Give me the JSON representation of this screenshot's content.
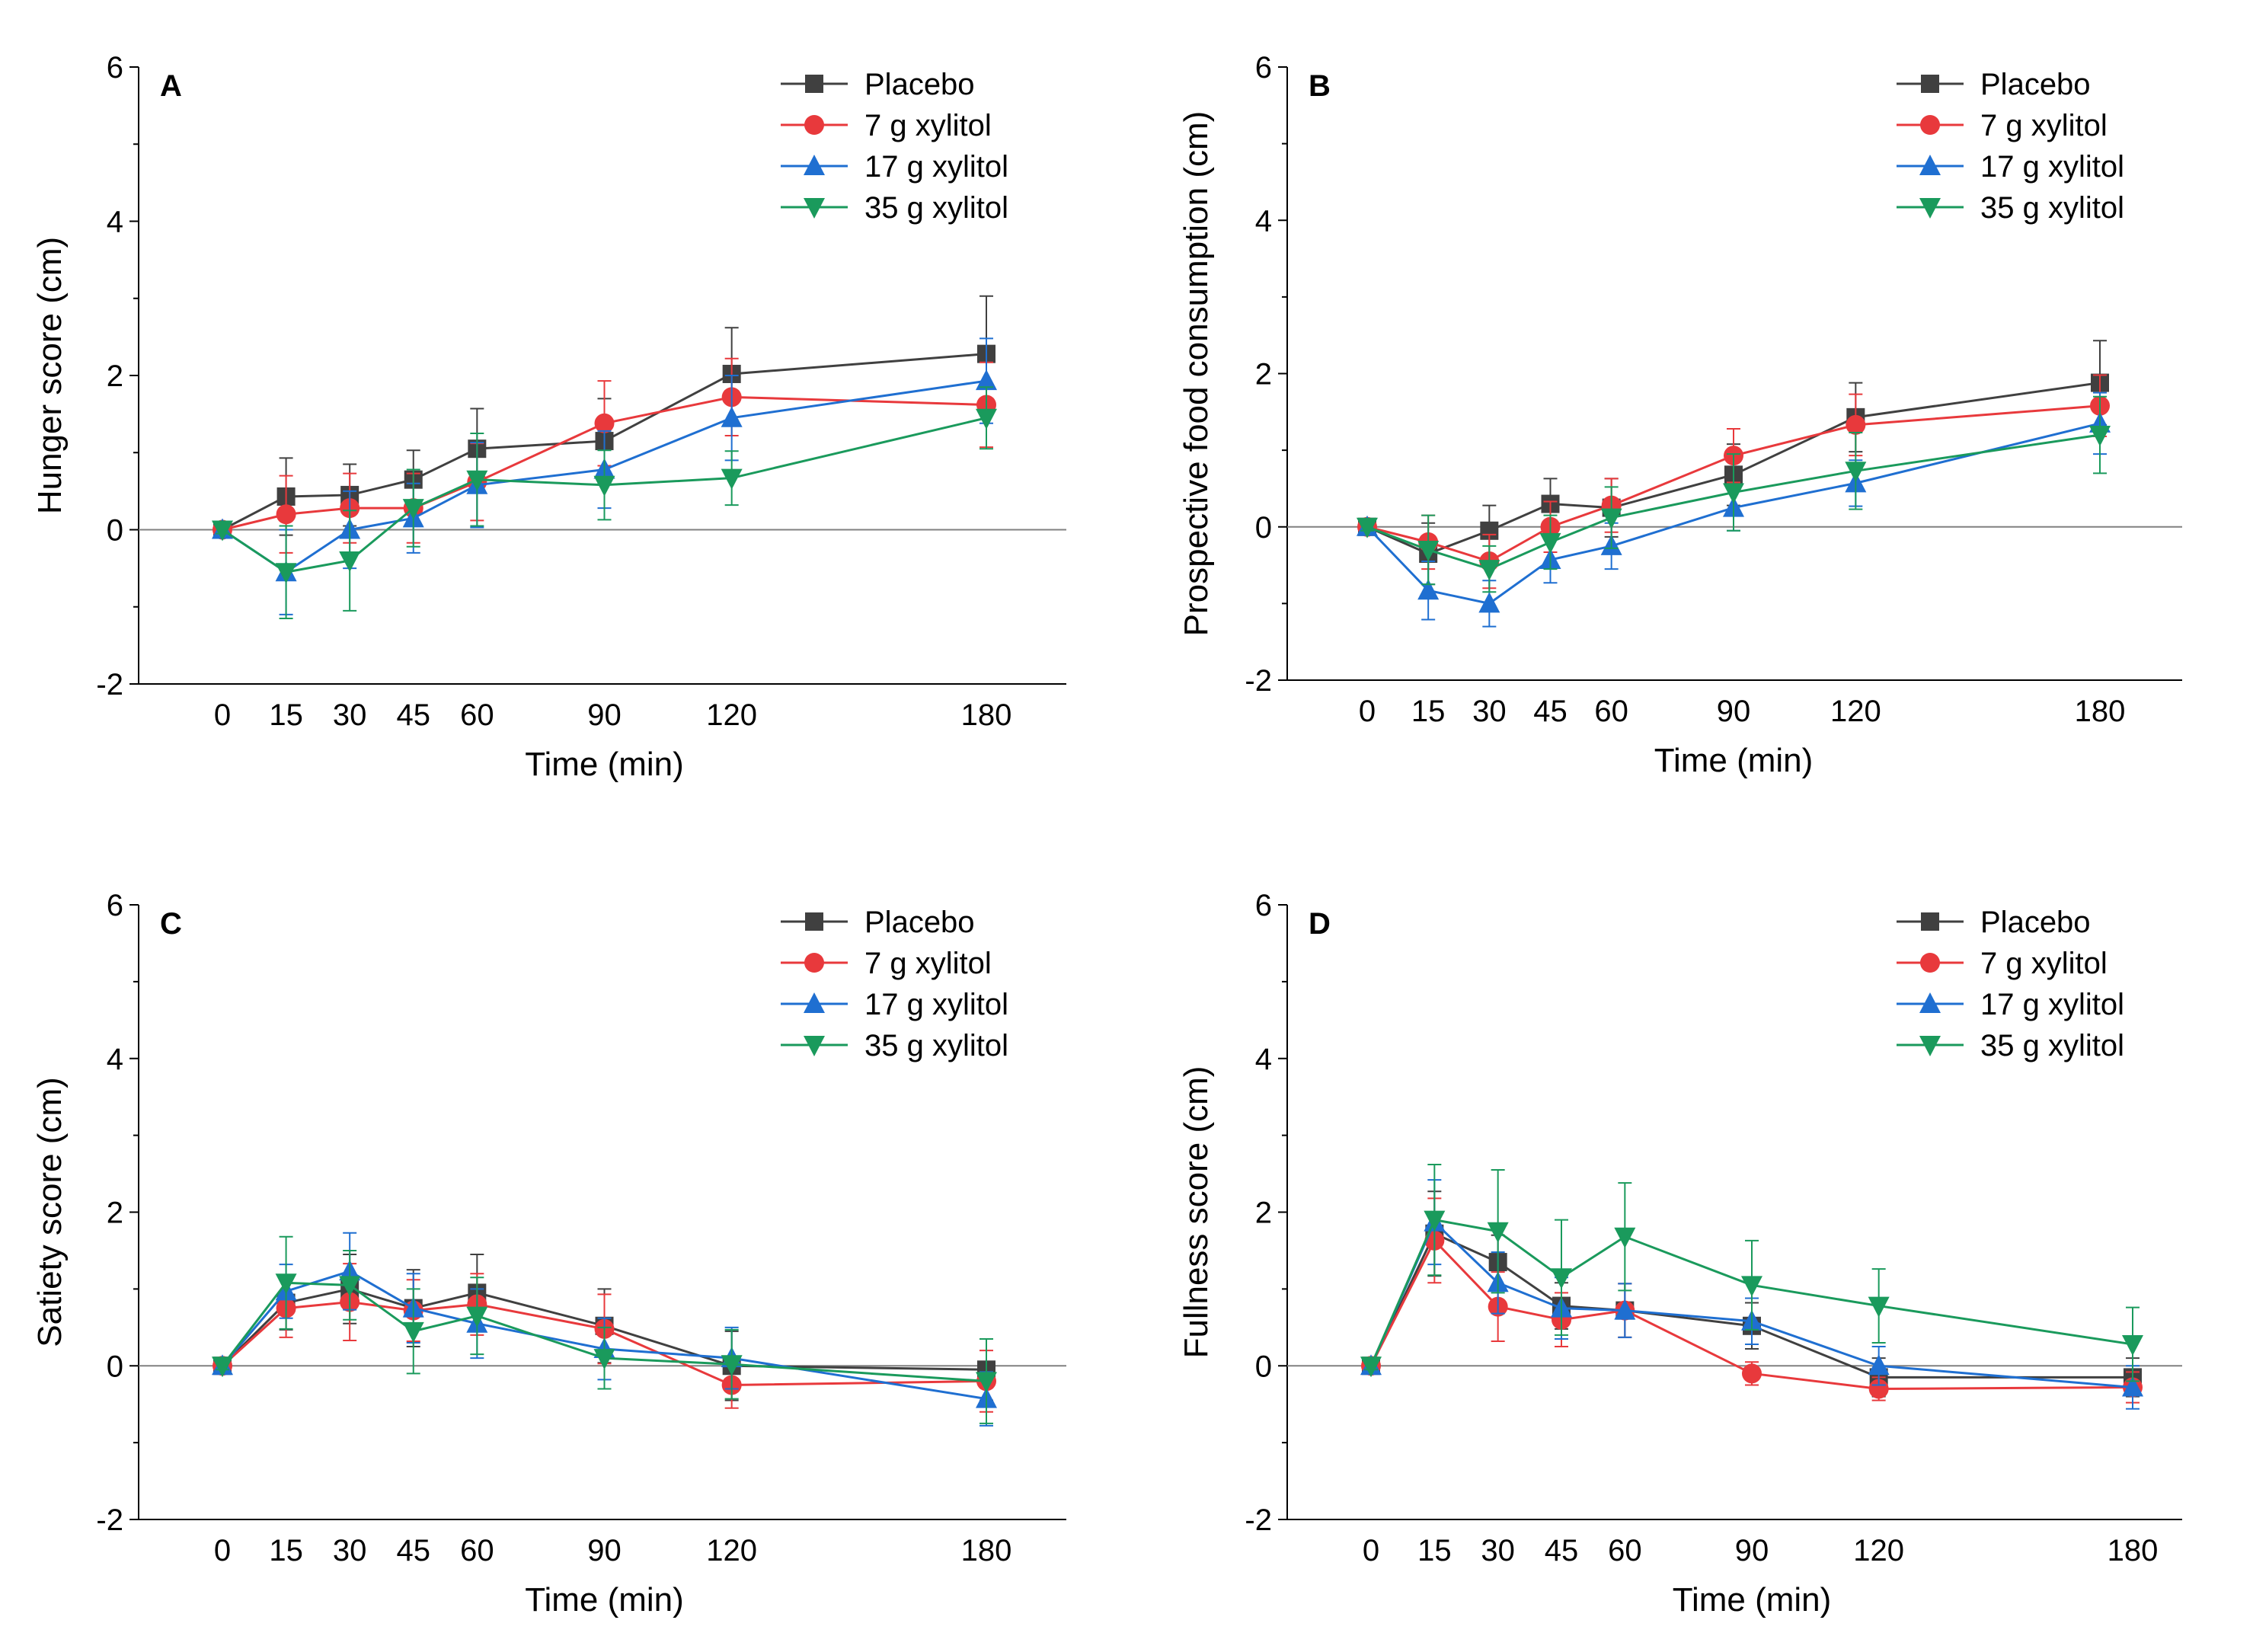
{
  "chart_data": [
    {
      "type": "line",
      "panel": "A",
      "xlabel": "Time (min)",
      "ylabel": "Hunger score (cm)",
      "x": [
        0,
        15,
        30,
        45,
        60,
        90,
        120,
        180
      ],
      "xticks": [
        "0",
        "15",
        "30",
        "45",
        "60",
        "90",
        "120",
        "180"
      ],
      "ylim": [
        -2,
        6
      ],
      "yticks": [
        "-2",
        "0",
        "2",
        "4",
        "6"
      ],
      "legend_position": "top-right",
      "series": [
        {
          "name": "Placebo",
          "color": "#404040",
          "marker": "square",
          "values": [
            0,
            0.43,
            0.45,
            0.65,
            1.05,
            1.15,
            2.02,
            2.28
          ],
          "errors": [
            0.05,
            0.5,
            0.4,
            0.38,
            0.52,
            0.55,
            0.6,
            0.75
          ]
        },
        {
          "name": "7 g xylitol",
          "color": "#e8393c",
          "marker": "circle",
          "values": [
            0,
            0.2,
            0.28,
            0.28,
            0.62,
            1.38,
            1.72,
            1.62
          ],
          "errors": [
            0.05,
            0.5,
            0.45,
            0.45,
            0.5,
            0.55,
            0.5,
            0.55
          ]
        },
        {
          "name": "17 g xylitol",
          "color": "#1f6fd1",
          "marker": "triangle-up",
          "values": [
            0,
            -0.55,
            0,
            0.15,
            0.58,
            0.78,
            1.45,
            1.93
          ],
          "errors": [
            0.05,
            0.55,
            0.5,
            0.45,
            0.55,
            0.5,
            0.55,
            0.55
          ]
        },
        {
          "name": "35 g xylitol",
          "color": "#1a9a5c",
          "marker": "triangle-down",
          "values": [
            0,
            -0.55,
            -0.4,
            0.28,
            0.65,
            0.58,
            0.67,
            1.45
          ],
          "errors": [
            0.05,
            0.6,
            0.65,
            0.5,
            0.6,
            0.45,
            0.35,
            0.4
          ]
        }
      ]
    },
    {
      "type": "line",
      "panel": "B",
      "xlabel": "Time (min)",
      "ylabel": "Prospective food consumption (cm)",
      "x": [
        0,
        15,
        30,
        45,
        60,
        90,
        120,
        180
      ],
      "xticks": [
        "0",
        "15",
        "30",
        "45",
        "60",
        "90",
        "120",
        "180"
      ],
      "ylim": [
        -2,
        6
      ],
      "yticks": [
        "-2",
        "0",
        "2",
        "4",
        "6"
      ],
      "legend_position": "top-right",
      "series": [
        {
          "name": "Placebo",
          "color": "#404040",
          "marker": "square",
          "values": [
            0,
            -0.35,
            -0.05,
            0.3,
            0.25,
            0.68,
            1.43,
            1.88
          ],
          "errors": [
            0.05,
            0.4,
            0.33,
            0.33,
            0.38,
            0.4,
            0.45,
            0.55
          ]
        },
        {
          "name": "7 g xylitol",
          "color": "#e8393c",
          "marker": "circle",
          "values": [
            0,
            -0.2,
            -0.45,
            0,
            0.28,
            0.93,
            1.33,
            1.58
          ],
          "errors": [
            0.05,
            0.35,
            0.35,
            0.33,
            0.35,
            0.35,
            0.4,
            0.4
          ]
        },
        {
          "name": "17 g xylitol",
          "color": "#1f6fd1",
          "marker": "triangle-up",
          "values": [
            0,
            -0.83,
            -1.0,
            -0.43,
            -0.25,
            0.25,
            0.57,
            1.35
          ],
          "errors": [
            0.05,
            0.38,
            0.3,
            0.3,
            0.3,
            0.3,
            0.3,
            0.4
          ]
        },
        {
          "name": "35 g xylitol",
          "color": "#1a9a5c",
          "marker": "triangle-down",
          "values": [
            0,
            -0.3,
            -0.55,
            -0.2,
            0.12,
            0.45,
            0.73,
            1.2
          ],
          "errors": [
            0.05,
            0.45,
            0.3,
            0.35,
            0.4,
            0.5,
            0.5,
            0.5
          ]
        }
      ]
    },
    {
      "type": "line",
      "panel": "C",
      "xlabel": "Time (min)",
      "ylabel": "Satiety score (cm)",
      "x": [
        0,
        15,
        30,
        45,
        60,
        90,
        120,
        180
      ],
      "xticks": [
        "0",
        "15",
        "30",
        "45",
        "60",
        "90",
        "120",
        "180"
      ],
      "ylim": [
        -2,
        6
      ],
      "yticks": [
        "-2",
        "0",
        "2",
        "4",
        "6"
      ],
      "legend_position": "top-right",
      "series": [
        {
          "name": "Placebo",
          "color": "#404040",
          "marker": "square",
          "values": [
            0,
            0.82,
            1.0,
            0.75,
            0.95,
            0.52,
            0,
            -0.05
          ],
          "errors": [
            0.05,
            0.35,
            0.45,
            0.5,
            0.5,
            0.48,
            0.45,
            0.4
          ]
        },
        {
          "name": "7 g xylitol",
          "color": "#e8393c",
          "marker": "circle",
          "values": [
            0,
            0.75,
            0.83,
            0.72,
            0.8,
            0.48,
            -0.25,
            -0.2
          ],
          "errors": [
            0.05,
            0.38,
            0.5,
            0.4,
            0.4,
            0.45,
            0.3,
            0.4
          ]
        },
        {
          "name": "17 g xylitol",
          "color": "#1f6fd1",
          "marker": "triangle-up",
          "values": [
            0,
            0.97,
            1.23,
            0.75,
            0.55,
            0.22,
            0.1,
            -0.43
          ],
          "errors": [
            0.05,
            0.35,
            0.5,
            0.45,
            0.45,
            0.4,
            0.4,
            0.35
          ]
        },
        {
          "name": "35 g xylitol",
          "color": "#1a9a5c",
          "marker": "triangle-down",
          "values": [
            0,
            1.08,
            1.05,
            0.45,
            0.65,
            0.1,
            0.02,
            -0.2
          ],
          "errors": [
            0.05,
            0.6,
            0.45,
            0.55,
            0.5,
            0.4,
            0.45,
            0.55
          ]
        }
      ]
    },
    {
      "type": "line",
      "panel": "D",
      "xlabel": "Time (min)",
      "ylabel": "Fullness score (cm)",
      "x": [
        0,
        15,
        30,
        45,
        60,
        90,
        120,
        180
      ],
      "xticks": [
        "0",
        "15",
        "30",
        "45",
        "60",
        "90",
        "120",
        "180"
      ],
      "ylim": [
        -2,
        6
      ],
      "yticks": [
        "-2",
        "0",
        "2",
        "4",
        "6"
      ],
      "legend_position": "top-right",
      "series": [
        {
          "name": "Placebo",
          "color": "#404040",
          "marker": "square",
          "values": [
            0,
            1.72,
            1.35,
            0.78,
            0.72,
            0.52,
            -0.15,
            -0.15
          ],
          "errors": [
            0.05,
            0.55,
            0.35,
            0.3,
            0.35,
            0.3,
            0.25,
            0.25
          ]
        },
        {
          "name": "7 g xylitol",
          "color": "#e8393c",
          "marker": "circle",
          "values": [
            0,
            1.63,
            0.77,
            0.6,
            0.72,
            -0.1,
            -0.3,
            -0.28
          ],
          "errors": [
            0.05,
            0.55,
            0.45,
            0.35,
            0.35,
            0.15,
            0.15,
            0.2
          ]
        },
        {
          "name": "17 g xylitol",
          "color": "#1f6fd1",
          "marker": "triangle-up",
          "values": [
            0,
            1.87,
            1.08,
            0.75,
            0.72,
            0.58,
            0,
            -0.28
          ],
          "errors": [
            0.05,
            0.55,
            0.4,
            0.4,
            0.35,
            0.3,
            0.25,
            0.28
          ]
        },
        {
          "name": "35 g xylitol",
          "color": "#1a9a5c",
          "marker": "triangle-down",
          "values": [
            0,
            1.9,
            1.75,
            1.15,
            1.68,
            1.05,
            0.78,
            0.28
          ],
          "errors": [
            0.05,
            0.72,
            0.8,
            0.75,
            0.7,
            0.58,
            0.48,
            0.48
          ]
        }
      ]
    }
  ]
}
